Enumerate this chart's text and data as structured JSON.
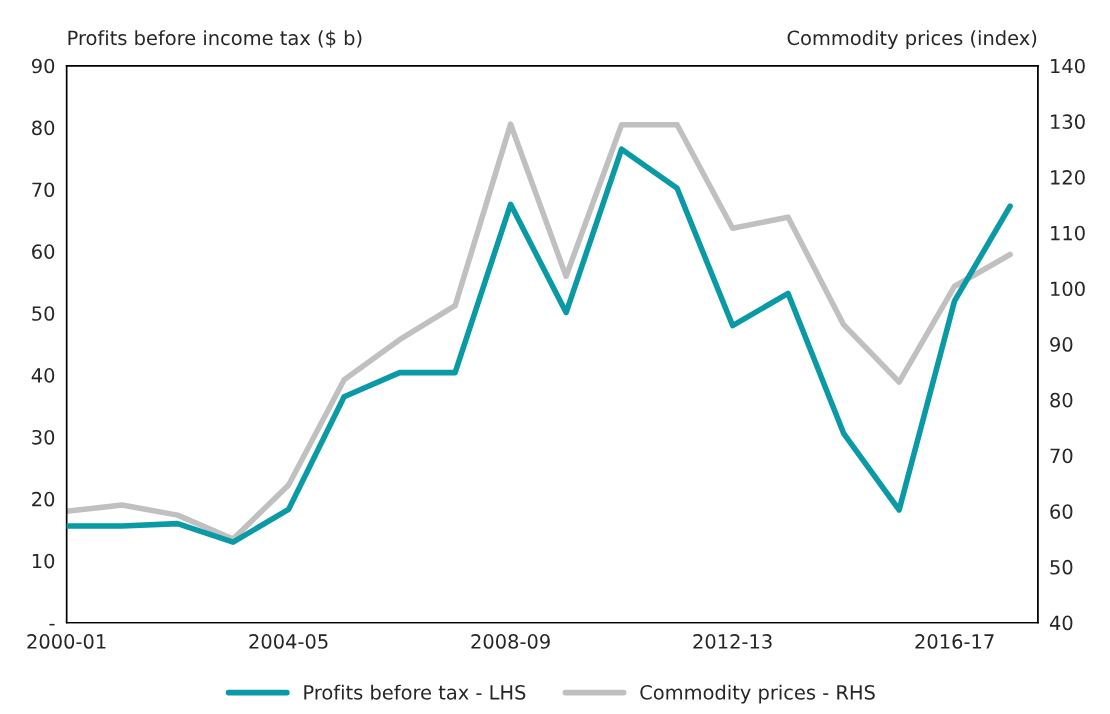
{
  "chart_data": {
    "type": "line",
    "ylabel": "Profits before income tax ($ b)",
    "y2label": "Commodity prices (index)",
    "categories": [
      "2000-01",
      null,
      null,
      null,
      "2004-05",
      null,
      null,
      null,
      "2008-09",
      null,
      null,
      null,
      "2012-13",
      null,
      null,
      null,
      "2016-17",
      null
    ],
    "series": [
      {
        "name": "Profits before tax - LHS",
        "color": "#0a9aa6",
        "axis": "y",
        "values": [
          15.6,
          15.6,
          16.0,
          13.0,
          18.3,
          36.5,
          40.4,
          40.4,
          67.6,
          50.1,
          76.5,
          70.2,
          48.0,
          53.2,
          30.6,
          18.2,
          52.0,
          67.3
        ]
      },
      {
        "name": "Commodity prices - RHS",
        "color": "#c0c0c0",
        "axis": "y2",
        "values": [
          60.0,
          61.1,
          59.3,
          55.0,
          64.7,
          83.6,
          90.8,
          96.9,
          129.5,
          102.2,
          129.4,
          129.4,
          110.8,
          112.8,
          93.5,
          83.2,
          100.4,
          106.1
        ]
      }
    ],
    "ylim": [
      0,
      90
    ],
    "yticks": [
      {
        "value": 0,
        "label": "-"
      },
      10,
      20,
      30,
      40,
      50,
      60,
      70,
      80,
      90
    ],
    "y2lim": [
      40,
      140
    ],
    "y2ticks": [
      40,
      50,
      60,
      70,
      80,
      90,
      100,
      110,
      120,
      130,
      140
    ],
    "grid": false,
    "legend": "bottom",
    "line_style": "solid",
    "marker": "none"
  }
}
